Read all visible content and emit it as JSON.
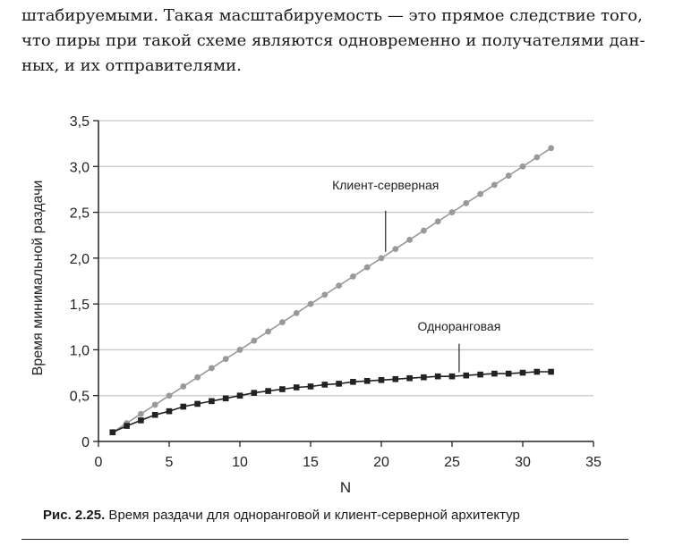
{
  "text_block": {
    "lines": [
      "штабируемыми. Такая масштабируемость — это прямое следствие того,",
      "что пиры при такой схеме являются одновременно и получателями дан-",
      "ных, и их отправителями."
    ]
  },
  "caption": {
    "label": "Рис. 2.25.",
    "text": " Время раздачи для одноранговой и клиент-серверной архитектур"
  },
  "chart_data": {
    "type": "line",
    "xlabel": "N",
    "ylabel": "Время минимальной раздачи",
    "xlim": [
      0,
      35
    ],
    "ylim": [
      0,
      3.5
    ],
    "xticks": [
      0,
      5,
      10,
      15,
      20,
      25,
      30,
      35
    ],
    "xtick_labels": [
      "0",
      "5",
      "10",
      "15",
      "20",
      "25",
      "30",
      "35"
    ],
    "yticks": [
      0,
      0.5,
      1.0,
      1.5,
      2.0,
      2.5,
      3.0,
      3.5
    ],
    "ytick_labels": [
      "0",
      "0,5",
      "1,0",
      "1,5",
      "2,0",
      "2,5",
      "3,0",
      "3,5"
    ],
    "grid": "horizontal",
    "series": [
      {
        "name": "Клиент-серверная",
        "marker": "circle",
        "color": "#999999",
        "x": [
          1,
          2,
          3,
          4,
          5,
          6,
          7,
          8,
          9,
          10,
          11,
          12,
          13,
          14,
          15,
          16,
          17,
          18,
          19,
          20,
          21,
          22,
          23,
          24,
          25,
          26,
          27,
          28,
          29,
          30,
          31,
          32
        ],
        "values": [
          0.1,
          0.2,
          0.3,
          0.4,
          0.5,
          0.6,
          0.7,
          0.8,
          0.9,
          1.0,
          1.1,
          1.2,
          1.3,
          1.4,
          1.5,
          1.6,
          1.7,
          1.8,
          1.9,
          2.0,
          2.1,
          2.2,
          2.3,
          2.4,
          2.5,
          2.6,
          2.7,
          2.8,
          2.9,
          3.0,
          3.1,
          3.2
        ]
      },
      {
        "name": "Одноранговая",
        "marker": "square",
        "color": "#222222",
        "x": [
          1,
          2,
          3,
          4,
          5,
          6,
          7,
          8,
          9,
          10,
          11,
          12,
          13,
          14,
          15,
          16,
          17,
          18,
          19,
          20,
          21,
          22,
          23,
          24,
          25,
          26,
          27,
          28,
          29,
          30,
          31,
          32
        ],
        "values": [
          0.1,
          0.17,
          0.23,
          0.29,
          0.33,
          0.38,
          0.41,
          0.44,
          0.47,
          0.5,
          0.53,
          0.55,
          0.57,
          0.59,
          0.6,
          0.62,
          0.63,
          0.65,
          0.66,
          0.67,
          0.68,
          0.69,
          0.7,
          0.71,
          0.71,
          0.72,
          0.73,
          0.74,
          0.74,
          0.75,
          0.76,
          0.76
        ]
      }
    ],
    "annotations": [
      {
        "text": "Клиент-серверная",
        "series": 0,
        "x": 20.3
      },
      {
        "text": "Одноранговая",
        "series": 1,
        "x": 25.5
      }
    ]
  }
}
